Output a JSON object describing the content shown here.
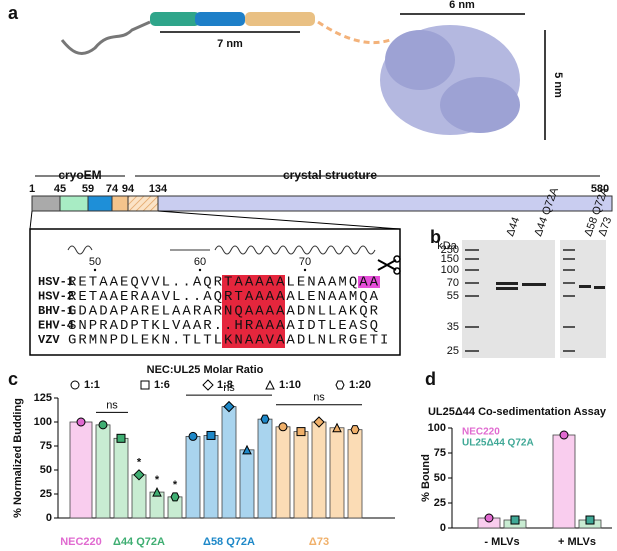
{
  "panel_labels": [
    "a",
    "b",
    "c",
    "d"
  ],
  "structure": {
    "helix_length": "7 nm",
    "width": "6 nm",
    "height": "5 nm"
  },
  "domains": {
    "regions": [
      "cryoEM",
      "crystal structure"
    ],
    "boundaries": [
      1,
      45,
      59,
      74,
      94,
      134,
      580
    ]
  },
  "alignment": {
    "positions": [
      50,
      60,
      70
    ],
    "rows": [
      {
        "name": "HSV-1",
        "sequence": "RETAAEQVVL..AQRTAAAAALENAAMQAA"
      },
      {
        "name": "HSV-2",
        "sequence": "RETAAERAAVL..AQRTAAAAALENAAMQA"
      },
      {
        "name": "BHV-1",
        "sequence": "GDADAPARELAARARNQAAAAADNLLAKQR"
      },
      {
        "name": "EHV-4",
        "sequence": "SNPRADPTKLVAAR..HRAAAAIDTLEASQ"
      },
      {
        "name": "VZV",
        "sequence": "GRMNPDLEKN.TLTLKNAAVAADLNLRGETI"
      }
    ]
  },
  "gel": {
    "unit": "kDa",
    "markers": [
      250,
      150,
      100,
      70,
      55,
      35,
      25
    ],
    "lanes": [
      "Δ44",
      "Δ44 Q72A",
      "Δ58 Q72A",
      "Δ73"
    ]
  },
  "chart_data": [
    {
      "type": "bar",
      "legend_title": "NEC:UL25 Molar Ratio",
      "ratios": [
        "1:1",
        "1:6",
        "1:8",
        "1:10",
        "1:20"
      ],
      "ylabel": "% Normalized Budding",
      "ylim": [
        0,
        125
      ],
      "yticks": [
        0,
        25,
        50,
        75,
        100,
        125
      ],
      "groups": [
        {
          "name": "NEC220",
          "color": "#f9cdee",
          "label_color": "#e06ad0",
          "values": [
            100
          ]
        },
        {
          "name": "Δ44 Q72A",
          "color": "#c8ecd2",
          "label_color": "#3fae72",
          "values": [
            97,
            83,
            45,
            27,
            22
          ]
        },
        {
          "name": "Δ58 Q72A",
          "color": "#a9d4ee",
          "label_color": "#1e88c8",
          "values": [
            85,
            86,
            116,
            71,
            103
          ]
        },
        {
          "name": "Δ73",
          "color": "#fbdcb5",
          "label_color": "#f0b06a",
          "values": [
            95,
            90,
            100,
            94,
            92
          ]
        }
      ],
      "annotations": [
        "ns",
        "ns",
        "ns",
        "*",
        "*",
        "*"
      ]
    },
    {
      "type": "bar",
      "title": "UL25Δ44 Co-sedimentation Assay",
      "ylabel": "% Bound",
      "ylim": [
        0,
        100
      ],
      "yticks": [
        0,
        25,
        50,
        75,
        100
      ],
      "categories": [
        "- MLVs",
        "+ MLVs"
      ],
      "series": [
        {
          "name": "NEC220",
          "color": "#f9cdee",
          "label_color": "#e06ad0",
          "values": [
            10,
            93
          ]
        },
        {
          "name": "UL25Δ44 Q72A",
          "color": "#c8ecd2",
          "label_color": "#3fa896",
          "values": [
            8,
            8
          ]
        }
      ]
    }
  ]
}
